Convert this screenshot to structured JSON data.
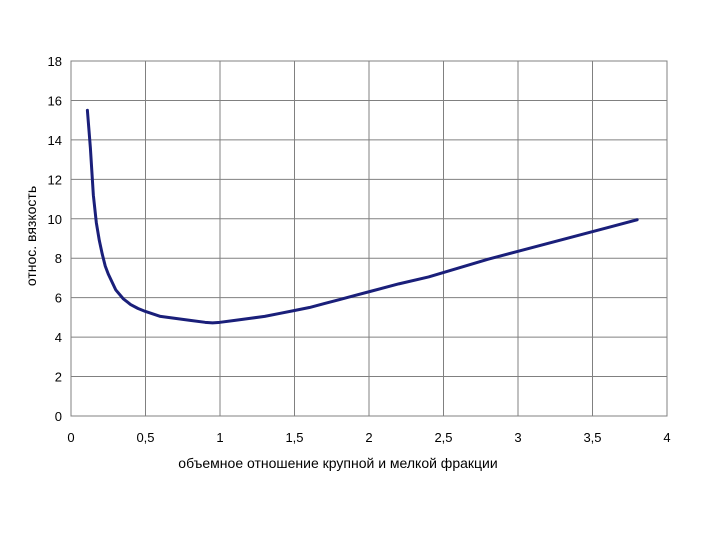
{
  "chart_data": {
    "type": "line",
    "title": "",
    "xlabel": "объемное отношение крупной и мелкой фракции",
    "ylabel": "относ. вязкость",
    "xlim": [
      0,
      4
    ],
    "ylim": [
      0,
      18
    ],
    "x_ticks": [
      0,
      0.5,
      1,
      1.5,
      2,
      2.5,
      3,
      3.5,
      4
    ],
    "x_tick_labels": [
      "0",
      "0,5",
      "1",
      "1,5",
      "2",
      "2,5",
      "3",
      "3,5",
      "4"
    ],
    "y_ticks": [
      0,
      2,
      4,
      6,
      8,
      10,
      12,
      14,
      16,
      18
    ],
    "y_tick_labels": [
      "0",
      "2",
      "4",
      "6",
      "8",
      "10",
      "12",
      "14",
      "16",
      "18"
    ],
    "grid": true,
    "legend": "none",
    "line_color": "#1a1f7a",
    "series": [
      {
        "x": [
          0.11,
          0.13,
          0.15,
          0.17,
          0.19,
          0.21,
          0.23,
          0.25,
          0.3,
          0.35,
          0.4,
          0.45,
          0.5,
          0.6,
          0.7,
          0.8,
          0.9,
          0.95,
          1.0,
          1.1,
          1.2,
          1.3,
          1.4,
          1.5,
          1.6,
          1.7,
          1.8,
          1.9,
          2.0,
          2.2,
          2.4,
          2.6,
          2.8,
          3.0,
          3.2,
          3.4,
          3.6,
          3.8
        ],
        "y": [
          15.5,
          13.6,
          11.2,
          9.8,
          8.9,
          8.2,
          7.6,
          7.2,
          6.4,
          5.95,
          5.65,
          5.45,
          5.3,
          5.05,
          4.95,
          4.85,
          4.75,
          4.72,
          4.75,
          4.85,
          4.95,
          5.05,
          5.2,
          5.35,
          5.5,
          5.7,
          5.9,
          6.1,
          6.3,
          6.7,
          7.05,
          7.5,
          7.95,
          8.35,
          8.75,
          9.15,
          9.55,
          9.95
        ]
      }
    ]
  }
}
